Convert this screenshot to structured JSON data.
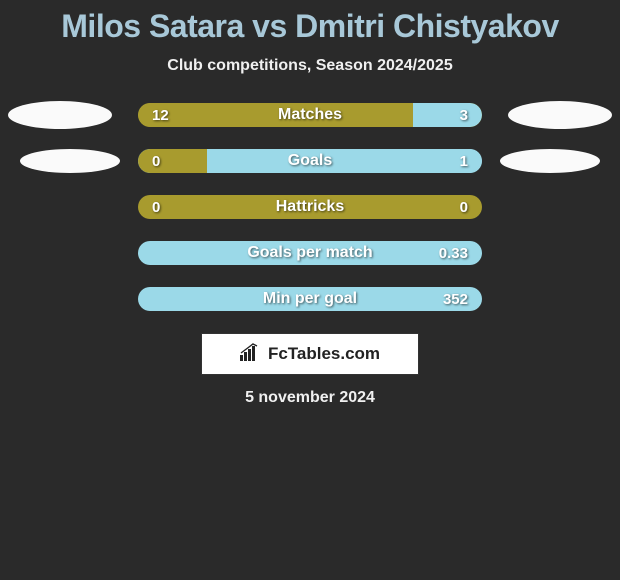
{
  "colors": {
    "background": "#2a2a2a",
    "title_color": "#a8c8d8",
    "text_color": "#f0f0f0",
    "olive": "#a89b2e",
    "light_blue": "#9bd9e8",
    "oval": "#fafafa"
  },
  "title": "Milos Satara vs Dmitri Chistyakov",
  "subtitle": "Club competitions, Season 2024/2025",
  "brand": "FcTables.com",
  "date": "5 november 2024",
  "rows": [
    {
      "label": "Matches",
      "left_value": "12",
      "right_value": "3",
      "left_pct": 80,
      "right_pct": 20,
      "left_color": "#a89b2e",
      "right_color": "#9bd9e8",
      "has_ovals": true,
      "oval_size": "big"
    },
    {
      "label": "Goals",
      "left_value": "0",
      "right_value": "1",
      "left_pct": 20,
      "right_pct": 80,
      "left_color": "#a89b2e",
      "right_color": "#9bd9e8",
      "has_ovals": true,
      "oval_size": "small"
    },
    {
      "label": "Hattricks",
      "left_value": "0",
      "right_value": "0",
      "left_pct": 100,
      "right_pct": 0,
      "left_color": "#a89b2e",
      "right_color": "#9bd9e8",
      "has_ovals": false
    },
    {
      "label": "Goals per match",
      "left_value": "",
      "right_value": "0.33",
      "left_pct": 0,
      "right_pct": 100,
      "left_color": "#a89b2e",
      "right_color": "#9bd9e8",
      "has_ovals": false
    },
    {
      "label": "Min per goal",
      "left_value": "",
      "right_value": "352",
      "left_pct": 0,
      "right_pct": 100,
      "left_color": "#a89b2e",
      "right_color": "#9bd9e8",
      "has_ovals": false
    }
  ]
}
